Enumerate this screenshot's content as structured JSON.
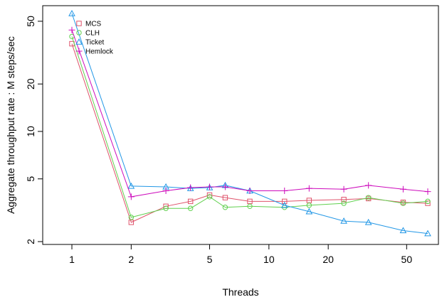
{
  "chart_data": {
    "type": "line",
    "title": "",
    "xlabel": "Threads",
    "ylabel": "Aggregate throughput rate : M steps/sec",
    "x_scale": "log",
    "y_scale": "log",
    "xlim": [
      1,
      64
    ],
    "ylim": [
      2,
      56
    ],
    "x_ticks": [
      1,
      2,
      5,
      10,
      20,
      50
    ],
    "y_ticks": [
      2,
      5,
      10,
      20,
      50
    ],
    "x": [
      1,
      2,
      3,
      4,
      5,
      6,
      8,
      12,
      16,
      24,
      32,
      48,
      64
    ],
    "grid": false,
    "legend_position": "top-left",
    "series": [
      {
        "name": "MCS",
        "color": "#df536b",
        "marker": "square",
        "values": [
          36,
          2.65,
          3.35,
          3.6,
          3.95,
          3.8,
          3.6,
          3.6,
          3.65,
          3.7,
          3.75,
          3.55,
          3.5
        ]
      },
      {
        "name": "CLH",
        "color": "#61d04f",
        "marker": "circle",
        "values": [
          40,
          2.85,
          3.25,
          3.25,
          3.85,
          3.3,
          3.35,
          3.3,
          3.4,
          3.5,
          3.8,
          3.5,
          3.6
        ]
      },
      {
        "name": "Ticket",
        "color": "#2297e6",
        "marker": "triangle",
        "values": [
          56,
          4.5,
          4.45,
          4.35,
          4.4,
          4.55,
          4.2,
          3.4,
          3.1,
          2.7,
          2.65,
          2.35,
          2.25
        ]
      },
      {
        "name": "Hemlock",
        "color": "#cd0bbc",
        "marker": "plus",
        "values": [
          44,
          3.85,
          4.2,
          4.4,
          4.45,
          4.45,
          4.2,
          4.2,
          4.35,
          4.3,
          4.55,
          4.3,
          4.15
        ]
      }
    ]
  }
}
